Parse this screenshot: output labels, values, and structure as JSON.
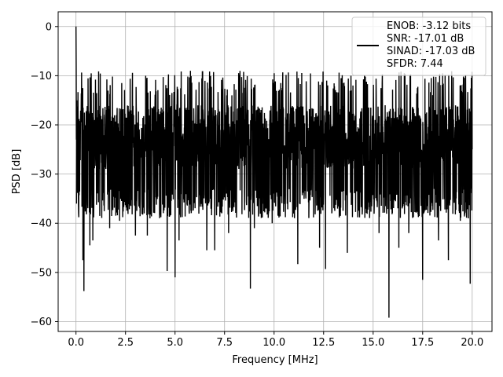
{
  "chart_data": {
    "type": "line",
    "xlabel": "Frequency [MHz]",
    "ylabel": "PSD [dB]",
    "xlim": [
      -0.9,
      21.0
    ],
    "ylim": [
      -62.0,
      3.0
    ],
    "xticks": [
      0.0,
      2.5,
      5.0,
      7.5,
      10.0,
      12.5,
      15.0,
      17.5,
      20.0
    ],
    "xtick_labels": [
      "0.0",
      "2.5",
      "5.0",
      "7.5",
      "10.0",
      "12.5",
      "15.0",
      "17.5",
      "20.0"
    ],
    "yticks": [
      0,
      -10,
      -20,
      -30,
      -40,
      -50,
      -60
    ],
    "ytick_labels": [
      "0",
      "−10",
      "−20",
      "−30",
      "−40",
      "−50",
      "−60"
    ],
    "grid": true,
    "legend_position": "top-right",
    "legend_lines": [
      "ENOB: -3.12 bits",
      "SNR: -17.01 dB",
      "SINAD: -17.03 dB",
      "SFDR: 7.44"
    ],
    "colors": {
      "line": "#000000",
      "grid": "#b0b0b0",
      "axes": "#000000",
      "legend_border": "#cccccc"
    },
    "series": [
      {
        "x_range": [
          0.0,
          20.0
        ],
        "peak_value_at_dc": 0,
        "envelope_upper_approx": -16,
        "envelope_lower_approx": -33,
        "deep_nulls": [
          {
            "x": 0.35,
            "y": -47.5
          },
          {
            "x": 0.4,
            "y": -53.8
          },
          {
            "x": 0.7,
            "y": -44.5
          },
          {
            "x": 0.85,
            "y": -43.5
          },
          {
            "x": 1.2,
            "y": -38.5
          },
          {
            "x": 1.7,
            "y": -41
          },
          {
            "x": 2.2,
            "y": -39.5
          },
          {
            "x": 3.0,
            "y": -42.5
          },
          {
            "x": 3.6,
            "y": -42.5
          },
          {
            "x": 4.6,
            "y": -49.7
          },
          {
            "x": 5.0,
            "y": -51
          },
          {
            "x": 5.2,
            "y": -43.5
          },
          {
            "x": 6.6,
            "y": -45.5
          },
          {
            "x": 7.0,
            "y": -45.5
          },
          {
            "x": 7.7,
            "y": -42
          },
          {
            "x": 8.8,
            "y": -53.3
          },
          {
            "x": 9.0,
            "y": -41
          },
          {
            "x": 9.9,
            "y": -40
          },
          {
            "x": 11.2,
            "y": -48.3
          },
          {
            "x": 12.3,
            "y": -45
          },
          {
            "x": 12.6,
            "y": -49.3
          },
          {
            "x": 13.7,
            "y": -46
          },
          {
            "x": 15.3,
            "y": -42
          },
          {
            "x": 15.8,
            "y": -59.2
          },
          {
            "x": 16.3,
            "y": -45
          },
          {
            "x": 16.8,
            "y": -42
          },
          {
            "x": 17.5,
            "y": -51.5
          },
          {
            "x": 18.3,
            "y": -43.5
          },
          {
            "x": 18.8,
            "y": -47.5
          },
          {
            "x": 19.4,
            "y": -39.5
          },
          {
            "x": 19.9,
            "y": -52.3
          }
        ]
      }
    ]
  }
}
